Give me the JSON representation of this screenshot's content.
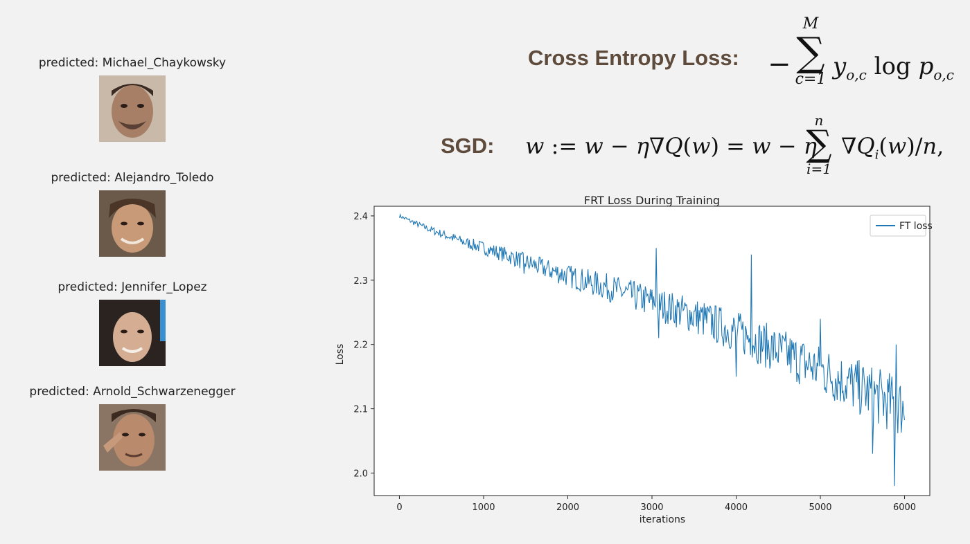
{
  "predictions": [
    {
      "label": "predicted: Michael_Chaykowsky"
    },
    {
      "label": "predicted: Alejandro_Toledo"
    },
    {
      "label": "predicted: Jennifer_Lopez"
    },
    {
      "label": "predicted: Arnold_Schwarzenegger"
    }
  ],
  "equations": {
    "cross_entropy_title": "Cross Entropy Loss:",
    "sgd_title": "SGD:"
  },
  "colors": {
    "series": "#1f77b4",
    "title_text": "#5e4b3c"
  },
  "chart_data": {
    "type": "line",
    "title": "FRT Loss During Training",
    "xlabel": "iterations",
    "ylabel": "Loss",
    "xlim": [
      -300,
      6300
    ],
    "ylim": [
      1.965,
      2.415
    ],
    "xticks": [
      0,
      1000,
      2000,
      3000,
      4000,
      5000,
      6000
    ],
    "yticks": [
      2.0,
      2.1,
      2.2,
      2.3,
      2.4
    ],
    "legend": "top-right",
    "grid": false,
    "series": [
      {
        "name": "FT loss",
        "color": "#1f77b4",
        "x": [
          0,
          250,
          500,
          750,
          1000,
          1250,
          1500,
          1750,
          2000,
          2250,
          2500,
          2750,
          3000,
          3250,
          3500,
          3750,
          4000,
          4250,
          4500,
          4750,
          5000,
          5250,
          5500,
          5750,
          6000
        ],
        "y": [
          2.4,
          2.385,
          2.372,
          2.36,
          2.35,
          2.34,
          2.328,
          2.317,
          2.307,
          2.297,
          2.288,
          2.277,
          2.266,
          2.255,
          2.245,
          2.232,
          2.22,
          2.205,
          2.19,
          2.175,
          2.16,
          2.145,
          2.13,
          2.115,
          2.1
        ],
        "spikes": [
          [
            1480,
            2.31
          ],
          [
            3050,
            2.35
          ],
          [
            3080,
            2.21
          ],
          [
            4180,
            2.34
          ],
          [
            5000,
            2.24
          ],
          [
            5900,
            2.2
          ],
          [
            5880,
            1.98
          ],
          [
            5620,
            2.03
          ],
          [
            4000,
            2.15
          ]
        ]
      }
    ]
  }
}
